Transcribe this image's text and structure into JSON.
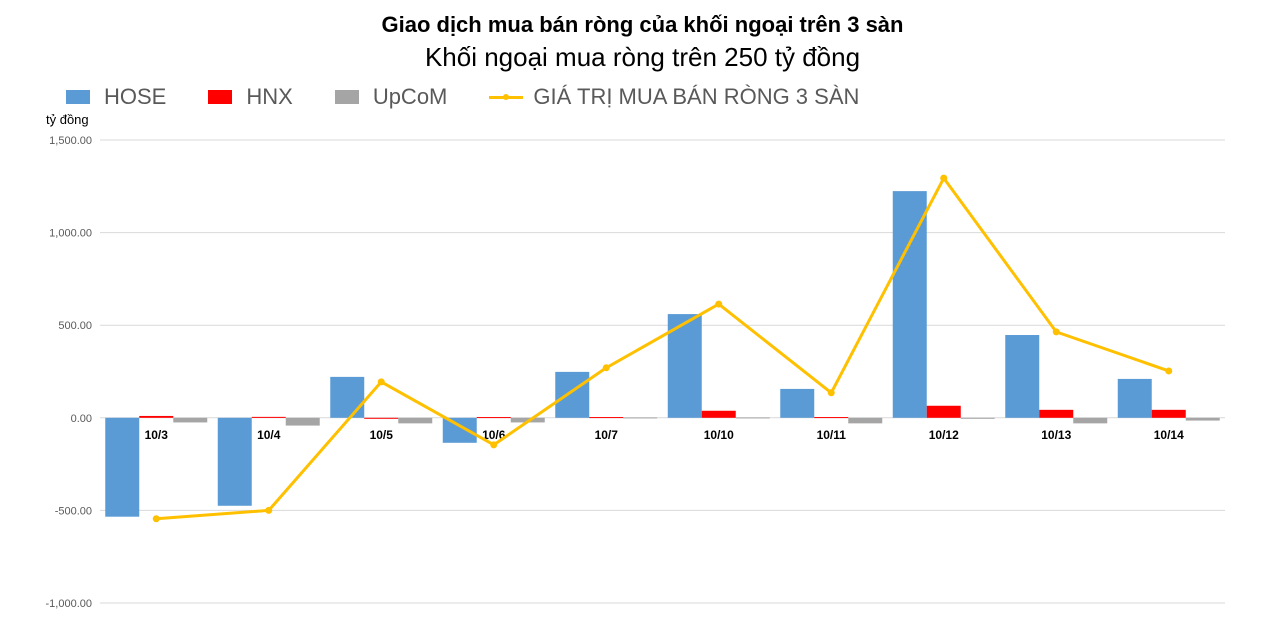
{
  "chart_data": {
    "type": "bar",
    "title": "Giao dịch mua bán ròng của khối ngoại trên 3 sàn",
    "subtitle": "Khối ngoại mua ròng trên 250 tỷ đồng",
    "ylabel": "tỷ đồng",
    "xlabel": "",
    "ylim": [
      -1000,
      1500
    ],
    "yticks": [
      "1,500.00",
      "1,000.00",
      "500.00",
      "0.00",
      "-500.00",
      "-1,000.00"
    ],
    "ytick_values": [
      1500,
      1000,
      500,
      0,
      -500,
      -1000
    ],
    "grid": true,
    "legend": "top-left",
    "categories": [
      "10/3",
      "10/4",
      "10/5",
      "10/6",
      "10/7",
      "10/10",
      "10/11",
      "10/12",
      "10/13",
      "10/14"
    ],
    "series": [
      {
        "name": "HOSE",
        "type": "bar",
        "color": "#5B9BD5",
        "values": [
          -534,
          -475,
          221,
          -135,
          248,
          560,
          156,
          1224,
          447,
          210
        ]
      },
      {
        "name": "HNX",
        "type": "bar",
        "color": "#FF0000",
        "values": [
          10,
          5,
          -3,
          4,
          4,
          38,
          4,
          65,
          43,
          43
        ]
      },
      {
        "name": "UpCoM",
        "type": "bar",
        "color": "#A5A5A5",
        "values": [
          -25,
          -42,
          -30,
          -25,
          2,
          2,
          -30,
          -2,
          -30,
          -15
        ]
      },
      {
        "name": "GIÁ TRỊ MUA BÁN RÒNG 3 SÀN",
        "type": "line",
        "color": "#FFC000",
        "values": [
          -545,
          -500,
          194,
          -146,
          270,
          614,
          135,
          1294,
          464,
          253
        ]
      }
    ]
  }
}
